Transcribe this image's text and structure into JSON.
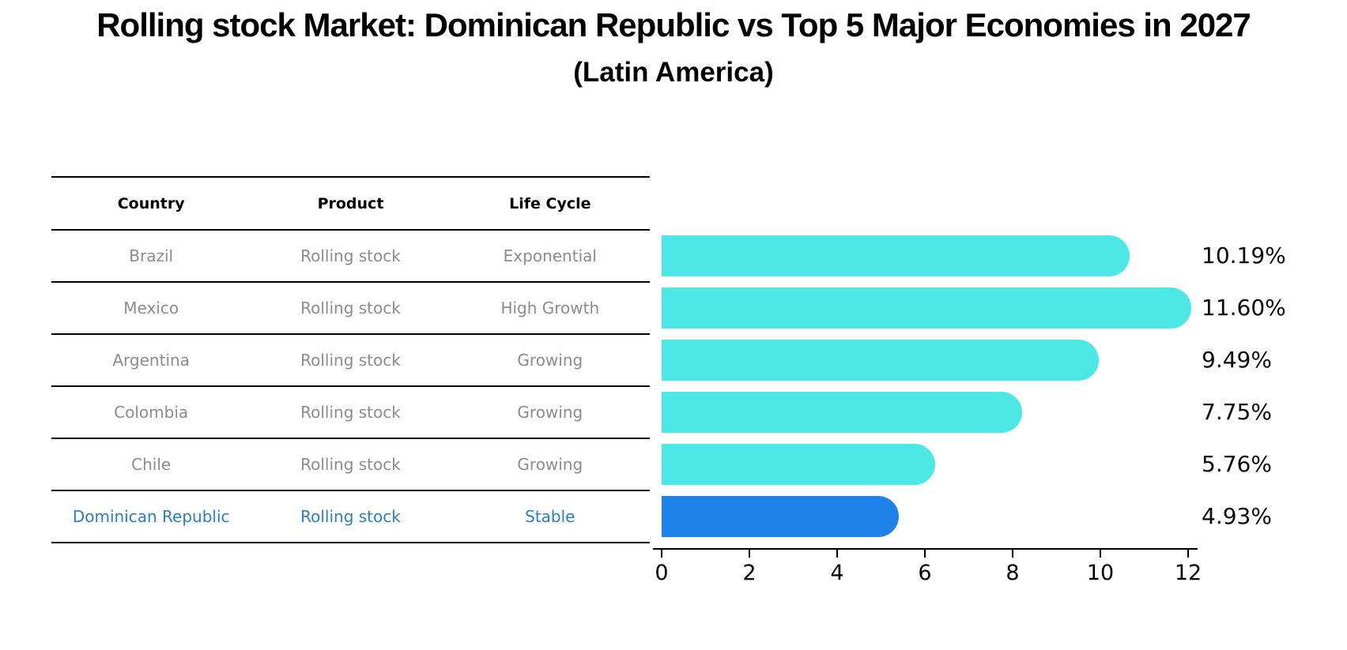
{
  "title": "Rolling stock Market: Dominican Republic vs Top 5 Major Economies in 2027",
  "subtitle": "(Latin America)",
  "table": {
    "headers": [
      "Country",
      "Product",
      "Life Cycle"
    ],
    "rows": [
      {
        "country": "Brazil",
        "product": "Rolling stock",
        "life_cycle": "Exponential",
        "highlight": false
      },
      {
        "country": "Mexico",
        "product": "Rolling stock",
        "life_cycle": "High Growth",
        "highlight": false
      },
      {
        "country": "Argentina",
        "product": "Rolling stock",
        "life_cycle": "Growing",
        "highlight": false
      },
      {
        "country": "Colombia",
        "product": "Rolling stock",
        "life_cycle": "Growing",
        "highlight": false
      },
      {
        "country": "Chile",
        "product": "Rolling stock",
        "life_cycle": "Growing",
        "highlight": false
      },
      {
        "country": "Dominican Republic",
        "product": "Rolling stock",
        "life_cycle": "Stable",
        "highlight": true
      }
    ]
  },
  "chart_data": {
    "type": "bar",
    "orientation": "horizontal",
    "title": "Rolling stock Market: Dominican Republic vs Top 5 Major Economies in 2027 (Latin America)",
    "categories": [
      "Brazil",
      "Mexico",
      "Argentina",
      "Colombia",
      "Chile",
      "Dominican Republic"
    ],
    "values": [
      10.19,
      11.6,
      9.49,
      7.75,
      5.76,
      4.93
    ],
    "value_labels": [
      "10.19%",
      "11.60%",
      "9.49%",
      "7.75%",
      "5.76%",
      "4.93%"
    ],
    "xlabel": "",
    "ylabel": "",
    "xlim": [
      0,
      12
    ],
    "x_ticks": [
      "0",
      "2",
      "4",
      "6",
      "8",
      "10",
      "12"
    ],
    "grid": false,
    "legend": false,
    "bar_color": "#4DE8E6",
    "highlight_color": "#1E82EA",
    "highlight_index": 5,
    "highlight_border_style": "dotted"
  },
  "colors": {
    "background": "#ffffff",
    "table_line": "#000000",
    "table_text_muted": "#8c8c8c",
    "highlight_text": "#2E7EBB",
    "axis": "#000000"
  }
}
